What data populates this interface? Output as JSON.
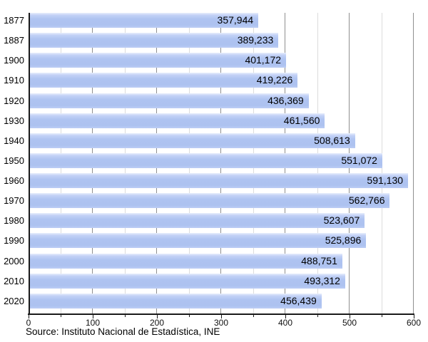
{
  "chart_data": {
    "type": "bar",
    "orientation": "horizontal",
    "title": "",
    "xlabel": "",
    "ylabel": "",
    "categories": [
      "1877",
      "1887",
      "1900",
      "1910",
      "1920",
      "1930",
      "1940",
      "1950",
      "1960",
      "1970",
      "1980",
      "1990",
      "2000",
      "2010",
      "2020"
    ],
    "values": [
      357944,
      389233,
      401172,
      419226,
      436369,
      461560,
      508613,
      551072,
      591130,
      562766,
      523607,
      525896,
      488751,
      493312,
      456439
    ],
    "value_labels": [
      "357,944",
      "389,233",
      "401,172",
      "419,226",
      "436,369",
      "461,560",
      "508,613",
      "551,072",
      "591,130",
      "562,766",
      "523,607",
      "525,896",
      "488,751",
      "493,312",
      "456,439"
    ],
    "xlim": [
      0,
      600000
    ],
    "x_ticks_major": [
      0,
      100,
      200,
      300,
      400,
      500,
      600
    ],
    "x_ticks_minor": [
      50,
      150,
      250,
      350,
      450,
      550
    ],
    "x_tick_scale": "thousands",
    "grid": "vertical major and minor, behind bars",
    "legend_position": "none",
    "colors": {
      "bar_fill": "#aec3f1",
      "bar_fill_highlight": "#e8eefc",
      "major_gridline": "#8f8f8f",
      "minor_gridline": "#dcdcdc",
      "axis": "#1a1a1a",
      "label_text": "#000000"
    }
  },
  "footer": {
    "source": "Source: Instituto Nacional de Estadística, INE"
  }
}
